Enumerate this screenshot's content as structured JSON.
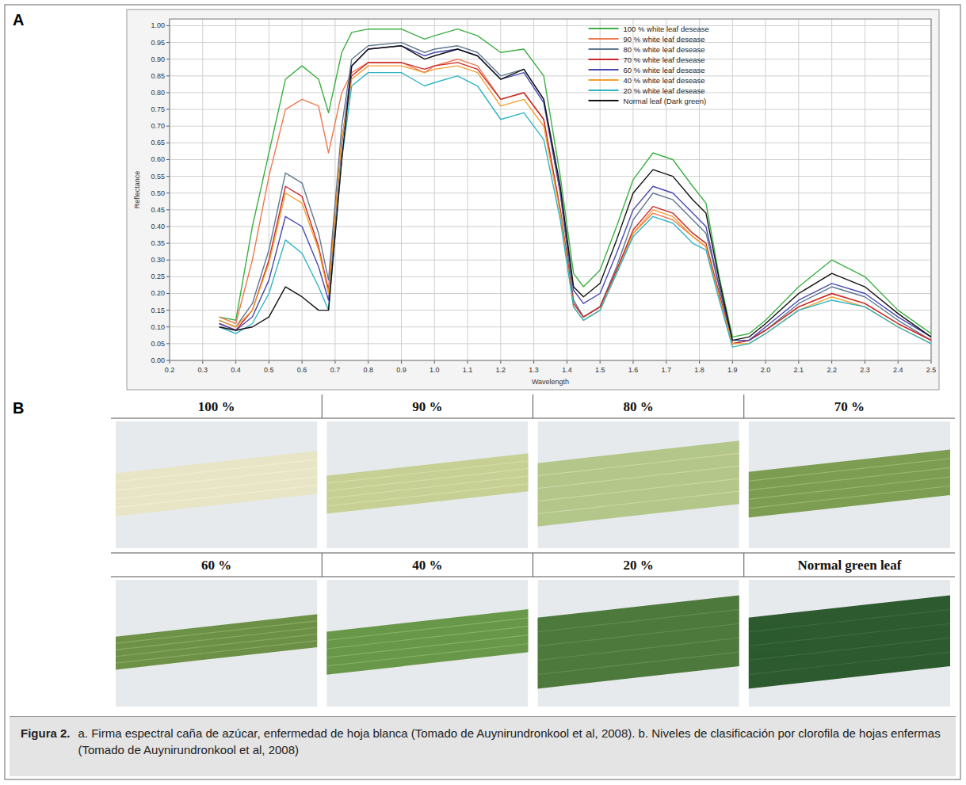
{
  "chart_data": {
    "type": "line",
    "xlabel": "Wavelength",
    "ylabel": "Reflectance",
    "x": [
      0.35,
      0.4,
      0.45,
      0.5,
      0.55,
      0.6,
      0.65,
      0.68,
      0.72,
      0.75,
      0.8,
      0.9,
      0.97,
      1.0,
      1.07,
      1.13,
      1.2,
      1.27,
      1.33,
      1.38,
      1.42,
      1.45,
      1.5,
      1.55,
      1.6,
      1.66,
      1.72,
      1.78,
      1.82,
      1.86,
      1.9,
      1.95,
      2.0,
      2.1,
      2.2,
      2.3,
      2.4,
      2.5
    ],
    "xlim": [
      0.2,
      2.5
    ],
    "xticks": [
      0.2,
      0.3,
      0.4,
      0.5,
      0.6,
      0.7,
      0.8,
      0.9,
      {
        "value": 1,
        "label": "1.0"
      },
      1.1,
      1.2,
      1.3,
      1.4,
      1.5,
      1.6,
      1.7,
      1.8,
      1.9,
      {
        "value": 2,
        "label": "2.0"
      },
      2.1,
      2.2,
      2.3,
      2.4,
      2.5
    ],
    "ylim": [
      0,
      1.02
    ],
    "yticks": [
      {
        "value": 0,
        "label": "0.00"
      },
      0.05,
      {
        "value": 0.1,
        "label": "0.10"
      },
      0.15,
      {
        "value": 0.2,
        "label": "0.20"
      },
      0.25,
      {
        "value": 0.3,
        "label": "0.30"
      },
      0.35,
      {
        "value": 0.4,
        "label": "0.40"
      },
      0.45,
      {
        "value": 0.5,
        "label": "0.50"
      },
      0.55,
      {
        "value": 0.6,
        "label": "0.60"
      },
      0.65,
      {
        "value": 0.7,
        "label": "0.70"
      },
      0.75,
      {
        "value": 0.8,
        "label": "0.80"
      },
      0.85,
      {
        "value": 0.9,
        "label": "0.90"
      },
      0.95,
      {
        "value": 1,
        "label": "1.00"
      }
    ],
    "grid": true,
    "legend": "upper right",
    "series": [
      {
        "name": "100 % white leaf desease",
        "color": "#3cb043",
        "values": [
          0.13,
          0.12,
          0.4,
          0.62,
          0.84,
          0.88,
          0.84,
          0.74,
          0.92,
          0.98,
          0.99,
          0.99,
          0.96,
          0.97,
          0.99,
          0.97,
          0.92,
          0.93,
          0.85,
          0.55,
          0.26,
          0.22,
          0.27,
          0.4,
          0.54,
          0.62,
          0.6,
          0.52,
          0.47,
          0.25,
          0.07,
          0.08,
          0.12,
          0.22,
          0.3,
          0.25,
          0.15,
          0.08
        ]
      },
      {
        "name": "90 % white leaf desease",
        "color": "#f07850",
        "values": [
          0.13,
          0.11,
          0.3,
          0.55,
          0.75,
          0.78,
          0.76,
          0.62,
          0.8,
          0.86,
          0.89,
          0.89,
          0.86,
          0.88,
          0.9,
          0.88,
          0.78,
          0.8,
          0.72,
          0.45,
          0.17,
          0.13,
          0.16,
          0.27,
          0.38,
          0.44,
          0.42,
          0.37,
          0.34,
          0.19,
          0.05,
          0.06,
          0.09,
          0.16,
          0.2,
          0.17,
          0.11,
          0.06
        ]
      },
      {
        "name": "80 % white leaf desease",
        "color": "#607890",
        "values": [
          0.12,
          0.1,
          0.17,
          0.33,
          0.56,
          0.53,
          0.38,
          0.24,
          0.7,
          0.9,
          0.94,
          0.95,
          0.92,
          0.93,
          0.94,
          0.92,
          0.85,
          0.87,
          0.78,
          0.5,
          0.18,
          0.13,
          0.16,
          0.28,
          0.42,
          0.5,
          0.48,
          0.42,
          0.38,
          0.22,
          0.05,
          0.06,
          0.09,
          0.17,
          0.22,
          0.19,
          0.12,
          0.06
        ]
      },
      {
        "name": "70 % white leaf desease",
        "color": "#c8282a",
        "values": [
          0.11,
          0.09,
          0.15,
          0.3,
          0.52,
          0.49,
          0.34,
          0.21,
          0.65,
          0.85,
          0.89,
          0.89,
          0.87,
          0.88,
          0.89,
          0.87,
          0.78,
          0.8,
          0.72,
          0.45,
          0.17,
          0.13,
          0.16,
          0.27,
          0.39,
          0.46,
          0.44,
          0.38,
          0.35,
          0.2,
          0.05,
          0.06,
          0.09,
          0.16,
          0.2,
          0.17,
          0.11,
          0.06
        ]
      },
      {
        "name": "60 % white leaf desease",
        "color": "#4848b0",
        "values": [
          0.11,
          0.09,
          0.13,
          0.24,
          0.43,
          0.4,
          0.28,
          0.18,
          0.65,
          0.88,
          0.93,
          0.94,
          0.91,
          0.92,
          0.93,
          0.91,
          0.84,
          0.86,
          0.77,
          0.5,
          0.21,
          0.17,
          0.2,
          0.32,
          0.45,
          0.52,
          0.5,
          0.44,
          0.4,
          0.22,
          0.06,
          0.06,
          0.1,
          0.18,
          0.23,
          0.2,
          0.13,
          0.07
        ]
      },
      {
        "name": "40 % white leaf desease",
        "color": "#f5a030",
        "values": [
          0.12,
          0.1,
          0.15,
          0.29,
          0.5,
          0.47,
          0.33,
          0.2,
          0.66,
          0.84,
          0.88,
          0.88,
          0.86,
          0.87,
          0.88,
          0.86,
          0.76,
          0.78,
          0.7,
          0.44,
          0.16,
          0.12,
          0.15,
          0.26,
          0.38,
          0.45,
          0.43,
          0.37,
          0.34,
          0.19,
          0.05,
          0.05,
          0.08,
          0.15,
          0.19,
          0.16,
          0.1,
          0.05
        ]
      },
      {
        "name": "20 % white leaf desease",
        "color": "#30b4c4",
        "values": [
          0.1,
          0.08,
          0.11,
          0.2,
          0.36,
          0.32,
          0.22,
          0.15,
          0.6,
          0.82,
          0.86,
          0.86,
          0.82,
          0.83,
          0.85,
          0.82,
          0.72,
          0.74,
          0.66,
          0.42,
          0.16,
          0.12,
          0.15,
          0.26,
          0.37,
          0.43,
          0.41,
          0.35,
          0.33,
          0.18,
          0.04,
          0.05,
          0.08,
          0.15,
          0.18,
          0.16,
          0.1,
          0.05
        ]
      },
      {
        "name": "Normal leaf (Dark green)",
        "color": "#111111",
        "values": [
          0.1,
          0.09,
          0.1,
          0.13,
          0.22,
          0.19,
          0.15,
          0.15,
          0.6,
          0.88,
          0.93,
          0.94,
          0.9,
          0.91,
          0.93,
          0.91,
          0.84,
          0.87,
          0.78,
          0.52,
          0.22,
          0.19,
          0.23,
          0.36,
          0.5,
          0.57,
          0.55,
          0.48,
          0.44,
          0.24,
          0.06,
          0.07,
          0.11,
          0.2,
          0.26,
          0.22,
          0.14,
          0.07
        ]
      }
    ]
  },
  "panel_labels": [
    "A",
    "B"
  ],
  "leaf_panel": {
    "labels": [
      "100 %",
      "90 %",
      "80 %",
      "70 %",
      "60 %",
      "40 %",
      "20 %",
      "Normal green leaf"
    ]
  },
  "caption": {
    "label": "Figura 2.",
    "text": "a. Firma espectral caña de azúcar, enfermedad de hoja blanca (Tomado de Auynirundronkool et al, 2008). b. Niveles de clasificación por clorofila de hojas enfermas (Tomado de Auynirundronkool et al, 2008)"
  }
}
